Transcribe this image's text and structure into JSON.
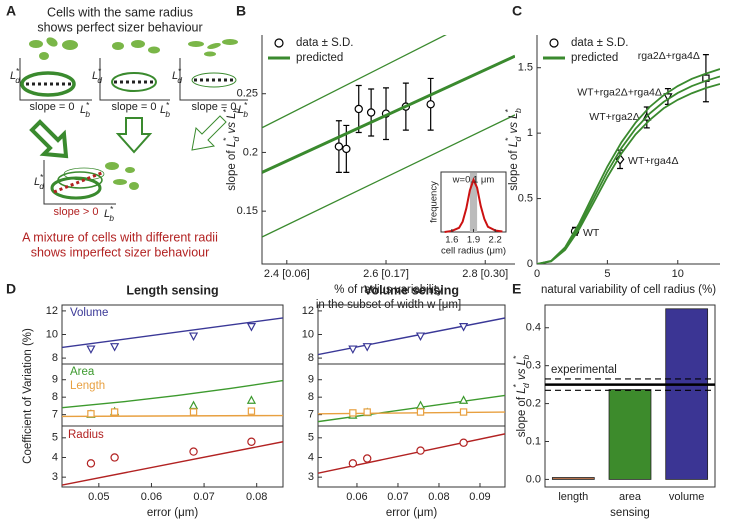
{
  "panel_labels": [
    "A",
    "B",
    "C",
    "D",
    "E"
  ],
  "diagram": {
    "title": [
      "Cells with the same radius",
      "shows perfect sizer behaviour"
    ],
    "axis_y": [
      {
        "text": "L",
        "sup": "*",
        "sub": "d",
        "italic": true
      }
    ],
    "axis_x": [
      {
        "text": "L",
        "sup": "*",
        "sub": "b",
        "italic": true
      }
    ],
    "slope_zero": "slope = 0",
    "slope_pos": "slope > 0",
    "caption": [
      "A mixture of cells with different radii",
      "shows imperfect sizer behaviour"
    ]
  },
  "chart_data": [
    {
      "type": "scatter",
      "xlim": [
        2.35,
        2.86
      ],
      "ylim": [
        0.105,
        0.3
      ],
      "xticks": [
        {
          "value": 2.4,
          "label": "2.4 [0.06]"
        },
        {
          "value": 2.6,
          "label": "2.6 [0.17]"
        },
        {
          "value": 2.8,
          "label": "2.8 [0.30]"
        }
      ],
      "yticks": [
        0.15,
        0.2,
        0.25
      ],
      "xlabel": [
        "% of radius variability",
        "in the subset of width w [μm]"
      ],
      "ylabel": [
        {
          "text": "slope of "
        },
        {
          "text": "L",
          "sup": "*",
          "sub": "d",
          "italic": true
        },
        {
          "text": " vs ",
          "italic": true
        },
        {
          "text": "L",
          "sup": "*",
          "sub": "b",
          "italic": true
        }
      ],
      "legend": "upper left",
      "series": [
        {
          "name": "data ± S.D.",
          "color": "#000000",
          "marker": "circle",
          "x": [
            2.505,
            2.52,
            2.545,
            2.57,
            2.6,
            2.64,
            2.69
          ],
          "values": [
            0.205,
            0.203,
            0.237,
            0.234,
            0.233,
            0.239,
            0.241
          ],
          "errors": [
            0.022,
            0.02,
            0.02,
            0.02,
            0.022,
            0.02,
            0.022
          ]
        },
        {
          "name": "predicted",
          "color": "#3a8a2e",
          "kind": "line",
          "width": 3,
          "x": [
            2.35,
            2.86
          ],
          "values": [
            0.183,
            0.282
          ]
        },
        {
          "color": "#3a8a2e",
          "kind": "line",
          "width": 1.3,
          "x": [
            2.35,
            2.86
          ],
          "values": [
            0.221,
            0.33
          ]
        },
        {
          "color": "#3a8a2e",
          "kind": "line",
          "width": 1.3,
          "x": [
            2.35,
            2.86
          ],
          "values": [
            0.128,
            0.232
          ]
        }
      ],
      "inset": {
        "annotation": "w=0.1 μm",
        "xlabel": "cell radius (μm)",
        "ylabel": "frequency",
        "xlim": [
          1.45,
          2.35
        ],
        "ylim": [
          0,
          1.15
        ],
        "xticks": [
          1.6,
          1.9,
          2.2
        ],
        "highlight": [
          1.85,
          1.95
        ],
        "color": "#cc1111",
        "x": [
          1.5,
          1.6,
          1.7,
          1.75,
          1.8,
          1.85,
          1.9,
          1.95,
          2.0,
          2.05,
          2.1,
          2.2,
          2.3
        ],
        "values": [
          0,
          0.02,
          0.08,
          0.2,
          0.45,
          0.8,
          1,
          0.85,
          0.5,
          0.25,
          0.1,
          0.03,
          0.01
        ]
      }
    },
    {
      "type": "scatter",
      "xlim": [
        0,
        13
      ],
      "ylim": [
        0,
        1.75
      ],
      "xticks": [
        0,
        5,
        10
      ],
      "yticks": [
        0,
        0.5,
        1,
        1.5
      ],
      "xlabel": [
        "natural variability of cell radius (%)"
      ],
      "ylabel": [
        {
          "text": "slope of "
        },
        {
          "text": "L",
          "sup": "*",
          "sub": "d",
          "italic": true
        },
        {
          "text": " vs ",
          "italic": true
        },
        {
          "text": "L",
          "sup": "*",
          "sub": "b",
          "italic": true
        }
      ],
      "legend": "upper left",
      "series": [
        {
          "name": "data ± S.D.",
          "color": "#000000",
          "marker": "circle",
          "markers": [
            "circle",
            "diamond",
            "triangle",
            "triangle-down",
            "square"
          ],
          "point_labels": [
            "WT",
            "WT+rga4Δ",
            "WT+rga2Δ",
            "WT+rga2Δ+rga4Δ",
            "rga2Δ+rga4Δ"
          ],
          "x": [
            2.7,
            5.9,
            7.8,
            9.3,
            12.0
          ],
          "values": [
            0.25,
            0.8,
            1.12,
            1.28,
            1.42
          ],
          "errors": [
            0.03,
            0.07,
            0.08,
            0.06,
            0.18
          ]
        },
        {
          "name": "predicted",
          "color": "#3a8a2e",
          "kind": "line",
          "width": 1.8,
          "x": [
            0,
            1,
            2,
            3,
            4,
            5,
            6,
            7,
            8,
            9,
            10,
            11,
            12,
            13
          ],
          "values": [
            0,
            0.022,
            0.118,
            0.288,
            0.497,
            0.705,
            0.887,
            1.034,
            1.15,
            1.239,
            1.307,
            1.36,
            1.4,
            1.433
          ]
        },
        {
          "color": "#3a8a2e",
          "kind": "line",
          "width": 1.8,
          "x": [
            0,
            1,
            2,
            3,
            4,
            5,
            6,
            7,
            8,
            9,
            10,
            11,
            12,
            13
          ],
          "values": [
            0,
            0.024,
            0.128,
            0.31,
            0.53,
            0.745,
            0.93,
            1.08,
            1.2,
            1.29,
            1.36,
            1.415,
            1.455,
            1.49
          ]
        },
        {
          "color": "#3a8a2e",
          "kind": "line",
          "width": 1.8,
          "x": [
            0,
            1,
            2,
            3,
            4,
            5,
            6,
            7,
            8,
            9,
            10,
            11,
            12,
            13
          ],
          "values": [
            0,
            0.02,
            0.108,
            0.266,
            0.465,
            0.665,
            0.845,
            0.99,
            1.1,
            1.19,
            1.255,
            1.305,
            1.345,
            1.376
          ]
        }
      ]
    },
    {
      "type": "scatter",
      "title": "Length sensing",
      "xlim": [
        0.043,
        0.085
      ],
      "ylim": [
        7.5,
        12.5
      ],
      "yticks": [
        8,
        10,
        12
      ],
      "series": [
        {
          "name": "Volume",
          "color": "#3a3897",
          "kind": "line",
          "width": 1.4,
          "x": [
            0.043,
            0.085
          ],
          "values": [
            8.9,
            11.4
          ]
        },
        {
          "color": "#3a3897",
          "marker": "triangle-down",
          "x": [
            0.0485,
            0.053,
            0.068,
            0.079
          ],
          "values": [
            8.8,
            9.0,
            9.9,
            10.7
          ]
        }
      ]
    },
    {
      "type": "scatter",
      "xlim": [
        0.043,
        0.085
      ],
      "ylim": [
        6.35,
        9.9
      ],
      "yticks": [
        7,
        8,
        9
      ],
      "ylabel": "Coefficient of Variation (%)",
      "series": [
        {
          "name": "Area",
          "color": "#3d9a2e",
          "kind": "line",
          "width": 1.4,
          "x": [
            0.043,
            0.055,
            0.065,
            0.075,
            0.085
          ],
          "values": [
            7.4,
            7.75,
            8.1,
            8.5,
            8.95
          ]
        },
        {
          "color": "#3d9a2e",
          "marker": "triangle",
          "x": [
            0.0485,
            0.053,
            0.068,
            0.079
          ],
          "values": [
            7.0,
            7.15,
            7.5,
            7.8
          ]
        },
        {
          "name": "Length",
          "color": "#e8a040",
          "kind": "line",
          "width": 1.4,
          "x": [
            0.043,
            0.085
          ],
          "values": [
            6.9,
            6.95
          ]
        },
        {
          "color": "#e8a040",
          "marker": "square",
          "x": [
            0.0485,
            0.053,
            0.068,
            0.079
          ],
          "values": [
            7.05,
            7.15,
            7.15,
            7.2
          ]
        }
      ]
    },
    {
      "type": "scatter",
      "xlim": [
        0.043,
        0.085
      ],
      "ylim": [
        2.5,
        5.6
      ],
      "yticks": [
        3,
        4,
        5
      ],
      "xticks": [
        0.05,
        0.06,
        0.07,
        0.08
      ],
      "xlabel": [
        "error (μm)"
      ],
      "series": [
        {
          "name": "Radius",
          "color": "#b22222",
          "kind": "line",
          "width": 1.4,
          "x": [
            0.043,
            0.085
          ],
          "values": [
            2.6,
            4.8
          ]
        },
        {
          "color": "#b22222",
          "marker": "circle",
          "x": [
            0.0485,
            0.053,
            0.068,
            0.079
          ],
          "values": [
            3.7,
            4.0,
            4.3,
            4.8
          ]
        }
      ]
    },
    {
      "type": "scatter",
      "title": "Volume sensing",
      "xlim": [
        0.0505,
        0.0961
      ],
      "ylim": [
        7.5,
        12.5
      ],
      "yticks": [
        8,
        10,
        12
      ],
      "series": [
        {
          "color": "#3a3897",
          "kind": "line",
          "width": 1.4,
          "x": [
            0.0505,
            0.0961
          ],
          "values": [
            8.3,
            11.4
          ]
        },
        {
          "color": "#3a3897",
          "marker": "triangle-down",
          "x": [
            0.059,
            0.0625,
            0.0755,
            0.086
          ],
          "values": [
            8.8,
            9.0,
            9.9,
            10.7
          ]
        }
      ]
    },
    {
      "type": "scatter",
      "xlim": [
        0.0505,
        0.0961
      ],
      "ylim": [
        6.35,
        9.9
      ],
      "yticks": [
        7,
        8,
        9
      ],
      "series": [
        {
          "color": "#3d9a2e",
          "kind": "line",
          "width": 1.4,
          "x": [
            0.0505,
            0.0961
          ],
          "values": [
            6.6,
            8.1
          ]
        },
        {
          "color": "#3d9a2e",
          "marker": "triangle",
          "x": [
            0.059,
            0.0625,
            0.0755,
            0.086
          ],
          "values": [
            6.95,
            7.1,
            7.5,
            7.8
          ]
        },
        {
          "color": "#e8a040",
          "kind": "line",
          "width": 1.4,
          "x": [
            0.0505,
            0.0961
          ],
          "values": [
            7.05,
            7.15
          ]
        },
        {
          "color": "#e8a040",
          "marker": "square",
          "x": [
            0.059,
            0.0625,
            0.0755,
            0.086
          ],
          "values": [
            7.1,
            7.15,
            7.15,
            7.15
          ]
        }
      ]
    },
    {
      "type": "scatter",
      "xlim": [
        0.0505,
        0.0961
      ],
      "ylim": [
        2.5,
        5.6
      ],
      "yticks": [
        3,
        4,
        5
      ],
      "xticks": [
        0.06,
        0.07,
        0.08,
        0.09
      ],
      "xlabel": [
        "error (μm)"
      ],
      "series": [
        {
          "color": "#b22222",
          "kind": "line",
          "width": 1.4,
          "x": [
            0.0505,
            0.0961
          ],
          "values": [
            3.2,
            5.2
          ]
        },
        {
          "color": "#b22222",
          "marker": "circle",
          "x": [
            0.059,
            0.0625,
            0.0755,
            0.086
          ],
          "values": [
            3.7,
            3.95,
            4.35,
            4.75
          ]
        }
      ]
    },
    {
      "type": "bar",
      "categories": [
        "length",
        "area",
        "volume"
      ],
      "values": [
        0.005,
        0.237,
        0.45
      ],
      "colors": [
        "#b5714a",
        "#3d8b2c",
        "#3b3594"
      ],
      "ylim": [
        -0.02,
        0.46
      ],
      "yticks": [
        {
          "value": 0,
          "label": "0.0"
        },
        0.1,
        0.2,
        0.3,
        0.4
      ],
      "xlabel": [
        "sensing"
      ],
      "ylabel": [
        {
          "text": "slope of "
        },
        {
          "text": "L",
          "sup": "*",
          "sub": "d",
          "italic": true
        },
        {
          "text": " vs ",
          "italic": true
        },
        {
          "text": "L",
          "sup": "*",
          "sub": "b",
          "italic": true
        }
      ],
      "reference": {
        "label": "experimental",
        "value": 0.25,
        "band": [
          0.235,
          0.265
        ]
      }
    }
  ]
}
